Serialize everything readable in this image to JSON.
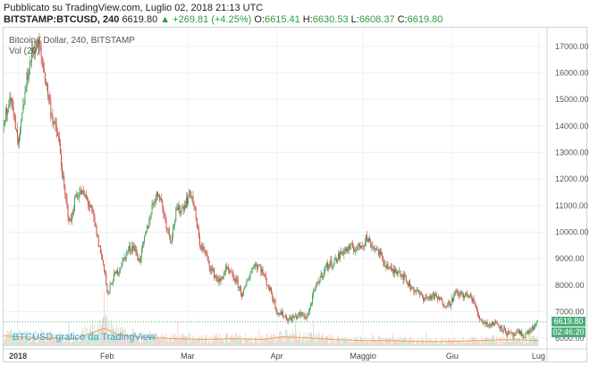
{
  "header": {
    "published": "Pubblicato su TradingView.com, Luglio 02, 2018 21:13 UTC",
    "symbol": "BITSTAMP:BTCUSD, 240",
    "last": "6619.80",
    "change": "▲ +269.81 (+4.25%)",
    "o_label": "O:",
    "o_value": "6615.41",
    "h_label": "H:",
    "h_value": "6630.53",
    "l_label": "L:",
    "l_value": "6608.37",
    "c_label": "C:",
    "c_value": "6619.80"
  },
  "legend": {
    "series": "Bitcoin / Dollar, 240, BITSTAMP",
    "volume": "Vol (20)"
  },
  "watermark": "BTCUSD grafico da TradingView",
  "price_tag": "6619.80",
  "time_tag": "02:46:20",
  "colors": {
    "up": "#3a9b52",
    "down": "#c8453d",
    "last_line": "#49b37c",
    "vol_ma": "#f0a04b",
    "watermark": "#29a3d8"
  },
  "chart_data": {
    "type": "candlestick",
    "title": "Bitcoin / Dollar, 240, BITSTAMP",
    "x_ticks": [
      {
        "label": "2018",
        "t": 0
      },
      {
        "label": "Feb",
        "t": 31
      },
      {
        "label": "Mar",
        "t": 59
      },
      {
        "label": "Apr",
        "t": 90
      },
      {
        "label": "Maggio",
        "t": 120
      },
      {
        "label": "Giu",
        "t": 151
      },
      {
        "label": "Lug",
        "t": 181
      }
    ],
    "x_range": [
      -5,
      184
    ],
    "y_ticks": [
      6000,
      7000,
      8000,
      9000,
      10000,
      11000,
      12000,
      13000,
      14000,
      15000,
      16000,
      17000
    ],
    "y_tick_labels": [
      "6000.00",
      "7000.00",
      "8000.00",
      "9000.00",
      "10000.00",
      "11000.00",
      "12000.00",
      "13000.00",
      "14000.00",
      "15000.00",
      "16000.00",
      "17000.00"
    ],
    "y_range": [
      5700,
      17700
    ],
    "last_price": 6619.8,
    "volume_indicator": "Vol (20)",
    "price_path": [
      [
        -5,
        14000
      ],
      [
        -3,
        15300
      ],
      [
        0,
        13200
      ],
      [
        3,
        15800
      ],
      [
        5,
        16900
      ],
      [
        7,
        17100
      ],
      [
        9,
        16000
      ],
      [
        12,
        14200
      ],
      [
        14,
        13500
      ],
      [
        16,
        11500
      ],
      [
        18,
        10300
      ],
      [
        20,
        11400
      ],
      [
        22,
        11500
      ],
      [
        24,
        11200
      ],
      [
        26,
        10600
      ],
      [
        28,
        9500
      ],
      [
        30,
        8600
      ],
      [
        31,
        7600
      ],
      [
        33,
        8300
      ],
      [
        35,
        8600
      ],
      [
        38,
        9300
      ],
      [
        40,
        9500
      ],
      [
        42,
        8900
      ],
      [
        45,
        10200
      ],
      [
        47,
        11200
      ],
      [
        49,
        11500
      ],
      [
        51,
        10500
      ],
      [
        53,
        9700
      ],
      [
        55,
        10800
      ],
      [
        57,
        10900
      ],
      [
        59,
        11300
      ],
      [
        60,
        11500
      ],
      [
        61,
        11000
      ],
      [
        63,
        9600
      ],
      [
        65,
        9200
      ],
      [
        67,
        8600
      ],
      [
        70,
        8100
      ],
      [
        72,
        8600
      ],
      [
        74,
        8400
      ],
      [
        76,
        8100
      ],
      [
        78,
        7600
      ],
      [
        80,
        8300
      ],
      [
        82,
        8800
      ],
      [
        84,
        8700
      ],
      [
        86,
        8200
      ],
      [
        88,
        7700
      ],
      [
        90,
        7000
      ],
      [
        92,
        6900
      ],
      [
        94,
        6700
      ],
      [
        96,
        6800
      ],
      [
        98,
        6900
      ],
      [
        100,
        6800
      ],
      [
        101,
        7000
      ],
      [
        103,
        7800
      ],
      [
        105,
        8300
      ],
      [
        107,
        8700
      ],
      [
        110,
        8900
      ],
      [
        113,
        9300
      ],
      [
        116,
        9400
      ],
      [
        118,
        9400
      ],
      [
        120,
        9600
      ],
      [
        121,
        9800
      ],
      [
        123,
        9500
      ],
      [
        125,
        9300
      ],
      [
        127,
        8900
      ],
      [
        130,
        8500
      ],
      [
        132,
        8600
      ],
      [
        134,
        8300
      ],
      [
        136,
        8000
      ],
      [
        138,
        7800
      ],
      [
        140,
        7600
      ],
      [
        142,
        7500
      ],
      [
        144,
        7600
      ],
      [
        146,
        7500
      ],
      [
        148,
        7300
      ],
      [
        150,
        7300
      ],
      [
        152,
        7700
      ],
      [
        154,
        7650
      ],
      [
        156,
        7600
      ],
      [
        158,
        7500
      ],
      [
        160,
        6800
      ],
      [
        162,
        6600
      ],
      [
        164,
        6500
      ],
      [
        166,
        6600
      ],
      [
        168,
        6400
      ],
      [
        170,
        6200
      ],
      [
        172,
        6100
      ],
      [
        174,
        6200
      ],
      [
        176,
        6100
      ],
      [
        178,
        6300
      ],
      [
        180,
        6500
      ],
      [
        181,
        6620
      ]
    ],
    "volume_profile": [
      [
        -5,
        0.55
      ],
      [
        0,
        0.5
      ],
      [
        10,
        0.45
      ],
      [
        20,
        0.4
      ],
      [
        30,
        0.95
      ],
      [
        35,
        0.6
      ],
      [
        45,
        0.45
      ],
      [
        55,
        0.4
      ],
      [
        65,
        0.35
      ],
      [
        75,
        0.4
      ],
      [
        85,
        0.35
      ],
      [
        92,
        0.5
      ],
      [
        100,
        0.45
      ],
      [
        110,
        0.35
      ],
      [
        120,
        0.3
      ],
      [
        130,
        0.3
      ],
      [
        140,
        0.25
      ],
      [
        150,
        0.25
      ],
      [
        160,
        0.3
      ],
      [
        170,
        0.35
      ],
      [
        181,
        0.3
      ]
    ]
  }
}
